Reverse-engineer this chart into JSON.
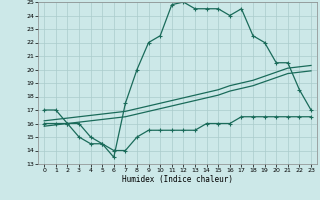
{
  "xlabel": "Humidex (Indice chaleur)",
  "xlim": [
    -0.5,
    23.5
  ],
  "ylim": [
    13,
    25
  ],
  "yticks": [
    13,
    14,
    15,
    16,
    17,
    18,
    19,
    20,
    21,
    22,
    23,
    24,
    25
  ],
  "xticks": [
    0,
    1,
    2,
    3,
    4,
    5,
    6,
    7,
    8,
    9,
    10,
    11,
    12,
    13,
    14,
    15,
    16,
    17,
    18,
    19,
    20,
    21,
    22,
    23
  ],
  "bg_color": "#cce8e8",
  "grid_color": "#aacccc",
  "line_color": "#1a6b5a",
  "line1_x": [
    0,
    1,
    2,
    3,
    4,
    5,
    6,
    7,
    8,
    9,
    10,
    11,
    12,
    13,
    14,
    15,
    16,
    17,
    18,
    19,
    20,
    21,
    22,
    23
  ],
  "line1_y": [
    17,
    17,
    16,
    16,
    15,
    14.5,
    13.5,
    17.5,
    20,
    22,
    22.5,
    24.8,
    25,
    24.5,
    24.5,
    24.5,
    24,
    24.5,
    22.5,
    22,
    20.5,
    20.5,
    18.5,
    17
  ],
  "line2_x": [
    0,
    1,
    2,
    3,
    4,
    5,
    6,
    7,
    8,
    9,
    10,
    11,
    12,
    13,
    14,
    15,
    16,
    17,
    18,
    19,
    20,
    21,
    22,
    23
  ],
  "line2_y": [
    16,
    16,
    16,
    15,
    14.5,
    14.5,
    14,
    14,
    15,
    15.5,
    15.5,
    15.5,
    15.5,
    15.5,
    16,
    16,
    16,
    16.5,
    16.5,
    16.5,
    16.5,
    16.5,
    16.5,
    16.5
  ],
  "line3a_x": [
    0,
    1,
    2,
    3,
    4,
    5,
    6,
    7,
    8,
    9,
    10,
    11,
    12,
    13,
    14,
    15,
    16,
    17,
    18,
    19,
    20,
    21,
    22,
    23
  ],
  "line3a_y": [
    16.2,
    16.3,
    16.4,
    16.5,
    16.6,
    16.7,
    16.8,
    16.9,
    17.1,
    17.3,
    17.5,
    17.7,
    17.9,
    18.1,
    18.3,
    18.5,
    18.8,
    19.0,
    19.2,
    19.5,
    19.8,
    20.1,
    20.2,
    20.3
  ],
  "line3b_x": [
    0,
    1,
    2,
    3,
    4,
    5,
    6,
    7,
    8,
    9,
    10,
    11,
    12,
    13,
    14,
    15,
    16,
    17,
    18,
    19,
    20,
    21,
    22,
    23
  ],
  "line3b_y": [
    15.8,
    15.9,
    16.0,
    16.1,
    16.2,
    16.3,
    16.4,
    16.5,
    16.7,
    16.9,
    17.1,
    17.3,
    17.5,
    17.7,
    17.9,
    18.1,
    18.4,
    18.6,
    18.8,
    19.1,
    19.4,
    19.7,
    19.8,
    19.9
  ]
}
